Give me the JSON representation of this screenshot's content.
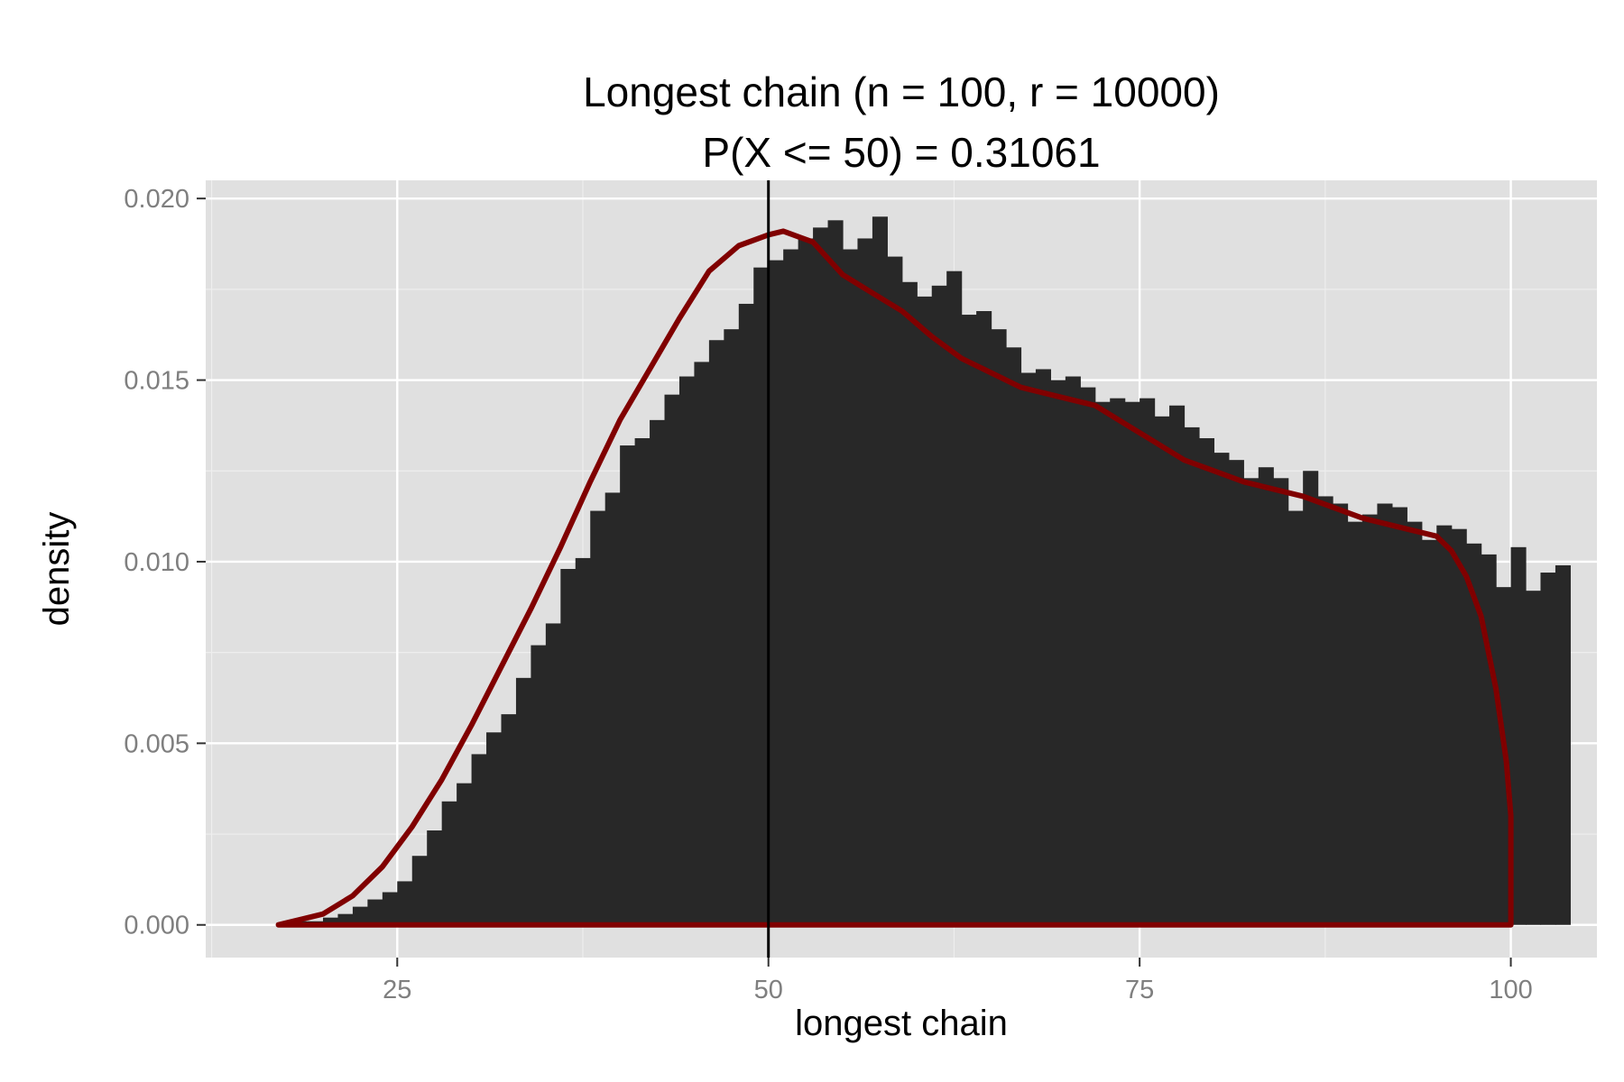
{
  "chart_data": {
    "type": "bar",
    "title": "Longest chain (n = 100, r = 10000)",
    "subtitle": "P(X <= 50) = 0.31061",
    "xlabel": "longest chain",
    "ylabel": "density",
    "xlim": [
      12.1,
      105.8
    ],
    "ylim": [
      -0.0009,
      0.0205
    ],
    "x_ticks": [
      25,
      50,
      75,
      100
    ],
    "x_tick_labels": [
      "25",
      "50",
      "75",
      "100"
    ],
    "y_ticks": [
      0.0,
      0.005,
      0.01,
      0.015,
      0.02
    ],
    "y_tick_labels": [
      "0.000",
      "0.005",
      "0.010",
      "0.015",
      "0.020"
    ],
    "grid": true,
    "vline_x": 50,
    "bins": {
      "start": 18,
      "width": 1,
      "values": [
        0.0001,
        0.0001,
        0.0002,
        0.0003,
        0.0005,
        0.0007,
        0.0009,
        0.0012,
        0.0019,
        0.0026,
        0.0034,
        0.0039,
        0.0047,
        0.0053,
        0.0058,
        0.0068,
        0.0077,
        0.0083,
        0.0098,
        0.0101,
        0.0114,
        0.0119,
        0.0132,
        0.0134,
        0.0139,
        0.0146,
        0.0151,
        0.0155,
        0.0161,
        0.0164,
        0.0171,
        0.0181,
        0.0183,
        0.0186,
        0.0189,
        0.0192,
        0.0194,
        0.0186,
        0.0189,
        0.0195,
        0.0184,
        0.0177,
        0.0173,
        0.0176,
        0.018,
        0.0168,
        0.0169,
        0.0164,
        0.0159,
        0.0152,
        0.0153,
        0.015,
        0.0151,
        0.0148,
        0.0144,
        0.0145,
        0.0144,
        0.0145,
        0.014,
        0.0143,
        0.0137,
        0.0134,
        0.013,
        0.0128,
        0.0123,
        0.0126,
        0.0123,
        0.0114,
        0.0125,
        0.0118,
        0.0116,
        0.0111,
        0.0113,
        0.0116,
        0.0115,
        0.0111,
        0.0106,
        0.011,
        0.0109,
        0.0105,
        0.0102,
        0.0093,
        0.0104,
        0.0092,
        0.0097,
        0.0099
      ]
    },
    "density_curve": [
      [
        17,
        0.0
      ],
      [
        18,
        0.0001
      ],
      [
        20,
        0.0003
      ],
      [
        22,
        0.0008
      ],
      [
        24,
        0.0016
      ],
      [
        26,
        0.0027
      ],
      [
        28,
        0.004
      ],
      [
        30,
        0.0055
      ],
      [
        32,
        0.0071
      ],
      [
        34,
        0.0087
      ],
      [
        36,
        0.0104
      ],
      [
        38,
        0.0122
      ],
      [
        40,
        0.0139
      ],
      [
        42,
        0.0153
      ],
      [
        44,
        0.0167
      ],
      [
        46,
        0.018
      ],
      [
        48,
        0.0187
      ],
      [
        50,
        0.019
      ],
      [
        51,
        0.0191
      ],
      [
        53,
        0.0188
      ],
      [
        55,
        0.0179
      ],
      [
        57,
        0.0174
      ],
      [
        59,
        0.0169
      ],
      [
        61,
        0.0162
      ],
      [
        63,
        0.0156
      ],
      [
        65,
        0.0152
      ],
      [
        67,
        0.0148
      ],
      [
        70,
        0.0145
      ],
      [
        72,
        0.0143
      ],
      [
        74,
        0.0138
      ],
      [
        76,
        0.0133
      ],
      [
        78,
        0.0128
      ],
      [
        80,
        0.0125
      ],
      [
        82,
        0.0122
      ],
      [
        84,
        0.012
      ],
      [
        86,
        0.0118
      ],
      [
        88,
        0.0115
      ],
      [
        90,
        0.0112
      ],
      [
        92,
        0.011
      ],
      [
        94,
        0.0108
      ],
      [
        95,
        0.0107
      ],
      [
        96,
        0.0103
      ],
      [
        97,
        0.0096
      ],
      [
        98,
        0.0085
      ],
      [
        99,
        0.0065
      ],
      [
        99.7,
        0.0045
      ],
      [
        100,
        0.003
      ],
      [
        100,
        0.0
      ],
      [
        17,
        0.0
      ]
    ],
    "colors": {
      "panel_background": "#E0E0E0",
      "grid_major": "#FFFFFF",
      "grid_minor": "#EEEEEE",
      "bar_fill": "#282828",
      "density_line": "#800000",
      "vline": "#000000",
      "tick_label": "#7F7F7F"
    }
  }
}
